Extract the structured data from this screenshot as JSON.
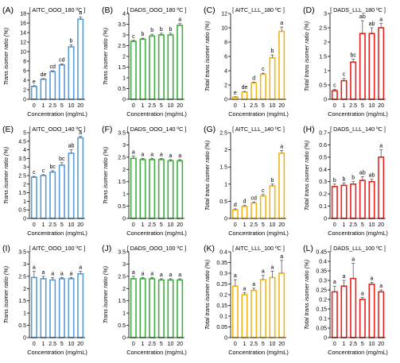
{
  "figure": {
    "xlabel": "Concentration (mg/mL)",
    "categories": [
      "0",
      "1",
      "2.5",
      "5",
      "10",
      "20"
    ],
    "colors": {
      "blue": "#5b9bd5",
      "green": "#3fae3f",
      "gold": "#f1b51c",
      "red": "#e8211b",
      "axis": "#000000",
      "error": "#444444"
    }
  },
  "chart_data": [
    {
      "type": "bar",
      "panel_label": "(A)",
      "title": "[ AITC_OOO_180 ºC ]",
      "ylabel": "Trans isomer ratio (%)",
      "categories": [
        "0",
        "1",
        "2.5",
        "5",
        "10",
        "20"
      ],
      "ylim": [
        0,
        18
      ],
      "yticks": [
        0,
        2,
        4,
        6,
        8,
        10,
        12,
        14,
        16,
        18
      ],
      "ytick_labels": [
        "0",
        "2",
        "4",
        "6",
        "8",
        "10",
        "12",
        "14",
        "16",
        "18"
      ],
      "values": [
        2.7,
        4.2,
        5.8,
        7.2,
        11.0,
        16.8
      ],
      "errors": [
        0.15,
        0.15,
        0.2,
        0.2,
        0.4,
        0.5
      ],
      "letters": [
        "e",
        "de",
        "cd",
        "cd",
        "b",
        "a"
      ],
      "color": "blue"
    },
    {
      "type": "bar",
      "panel_label": "(B)",
      "title": "[ DADS_OOO_180 ºC ]",
      "ylabel": "Trans isomer ratio (%)",
      "categories": [
        "0",
        "1",
        "2.5",
        "5",
        "10",
        "20"
      ],
      "ylim": [
        0,
        4
      ],
      "yticks": [
        0,
        0.5,
        1,
        1.5,
        2,
        2.5,
        3,
        3.5,
        4
      ],
      "ytick_labels": [
        "0",
        "0.5",
        "1",
        "1.5",
        "2",
        "2.5",
        "3",
        "3.5",
        "4"
      ],
      "values": [
        2.7,
        2.8,
        2.95,
        3.0,
        3.0,
        3.45
      ],
      "errors": [
        0.05,
        0.05,
        0.08,
        0.08,
        0.08,
        0.08
      ],
      "letters": [
        "c",
        "b",
        "b",
        "b",
        "b",
        "a"
      ],
      "color": "green"
    },
    {
      "type": "bar",
      "panel_label": "(C)",
      "title": "[ AITC_LLL_180 ºC ]",
      "ylabel": "Total trans isomer ratio (%)",
      "categories": [
        "0",
        "1",
        "2.5",
        "5",
        "10",
        "20"
      ],
      "ylim": [
        0,
        12
      ],
      "yticks": [
        0,
        2,
        4,
        6,
        8,
        10,
        12
      ],
      "ytick_labels": [
        "0",
        "2",
        "4",
        "6",
        "8",
        "10",
        "12"
      ],
      "values": [
        0.3,
        1.0,
        2.3,
        3.5,
        5.8,
        9.5
      ],
      "errors": [
        0.05,
        0.1,
        0.1,
        0.15,
        0.4,
        0.6
      ],
      "letters": [
        "e",
        "de",
        "d",
        "c",
        "b",
        "a"
      ],
      "color": "gold"
    },
    {
      "type": "bar",
      "panel_label": "(D)",
      "title": "[ DADS_LLL_180 ºC ]",
      "ylabel": "Total trans isomer ratio (%)",
      "categories": [
        "0",
        "1",
        "2.5",
        "5",
        "10",
        "20"
      ],
      "ylim": [
        0,
        3
      ],
      "yticks": [
        0,
        0.5,
        1,
        1.5,
        2,
        2.5,
        3
      ],
      "ytick_labels": [
        "0",
        "0.5",
        "1",
        "1.5",
        "2",
        "2.5",
        "3"
      ],
      "values": [
        0.3,
        0.65,
        1.3,
        2.3,
        2.3,
        2.5
      ],
      "errors": [
        0.05,
        0.08,
        0.1,
        0.45,
        0.2,
        0.15
      ],
      "letters": [
        "c",
        "c",
        "bc",
        "ab",
        "ab",
        "a"
      ],
      "color": "red"
    },
    {
      "type": "bar",
      "panel_label": "(E)",
      "title": "[ AITC_OOO_140 ºC ]",
      "ylabel": "Trans isomer ratio (%)",
      "categories": [
        "0",
        "1",
        "2.5",
        "5",
        "10",
        "20"
      ],
      "ylim": [
        0,
        5
      ],
      "yticks": [
        0,
        0.5,
        1,
        1.5,
        2,
        2.5,
        3,
        3.5,
        4,
        4.5,
        5
      ],
      "ytick_labels": [
        "0",
        "0.5",
        "1",
        "1.5",
        "2",
        "2.5",
        "3",
        "3.5",
        "4",
        "4.5",
        "5"
      ],
      "values": [
        2.4,
        2.5,
        2.7,
        3.1,
        3.8,
        4.7
      ],
      "errors": [
        0.05,
        0.05,
        0.08,
        0.15,
        0.2,
        0.08
      ],
      "letters": [
        "c",
        "c",
        "bc",
        "bc",
        "ab",
        "a"
      ],
      "color": "blue"
    },
    {
      "type": "bar",
      "panel_label": "(F)",
      "title": "[ DADS_OOO_140 ºC ]",
      "ylabel": "Trans isomer ratio (%)",
      "categories": [
        "0",
        "1",
        "2.5",
        "5",
        "10",
        "20"
      ],
      "ylim": [
        0,
        3.5
      ],
      "yticks": [
        0,
        0.5,
        1,
        1.5,
        2,
        2.5,
        3,
        3.5
      ],
      "ytick_labels": [
        "0",
        "0.5",
        "1",
        "1.5",
        "2",
        "2.5",
        "3",
        "3.5"
      ],
      "values": [
        2.45,
        2.4,
        2.4,
        2.4,
        2.35,
        2.35
      ],
      "errors": [
        0.1,
        0.05,
        0.05,
        0.05,
        0.05,
        0.05
      ],
      "letters": [
        "a",
        "a",
        "a",
        "a",
        "a",
        "a"
      ],
      "color": "green"
    },
    {
      "type": "bar",
      "panel_label": "(G)",
      "title": "[ AITC_LLL_140 ºC ]",
      "ylabel": "Total trans isomer ratio (%)",
      "categories": [
        "0",
        "1",
        "2.5",
        "5",
        "10",
        "20"
      ],
      "ylim": [
        0,
        2.5
      ],
      "yticks": [
        0,
        0.5,
        1,
        1.5,
        2,
        2.5
      ],
      "ytick_labels": [
        "0",
        "0.5",
        "1",
        "1.5",
        "2",
        "2.5"
      ],
      "values": [
        0.25,
        0.35,
        0.45,
        0.65,
        0.95,
        1.9
      ],
      "errors": [
        0.03,
        0.03,
        0.03,
        0.05,
        0.05,
        0.08
      ],
      "letters": [
        "d",
        "d",
        "cd",
        "c",
        "b",
        "a"
      ],
      "color": "gold"
    },
    {
      "type": "bar",
      "panel_label": "(H)",
      "title": "[ DADS_LLL_140 ºC ]",
      "ylabel": "Total trans isomer ratio (%)",
      "categories": [
        "0",
        "1",
        "2.5",
        "5",
        "10",
        "20"
      ],
      "ylim": [
        0,
        0.7
      ],
      "yticks": [
        0,
        0.1,
        0.2,
        0.3,
        0.4,
        0.5,
        0.6,
        0.7
      ],
      "ytick_labels": [
        "0",
        "0.1",
        "0.2",
        "0.3",
        "0.4",
        "0.5",
        "0.6",
        "0.7"
      ],
      "values": [
        0.26,
        0.27,
        0.28,
        0.31,
        0.3,
        0.5
      ],
      "errors": [
        0.02,
        0.02,
        0.02,
        0.03,
        0.02,
        0.06
      ],
      "letters": [
        "b",
        "b",
        "b",
        "ab",
        "ab",
        "a"
      ],
      "color": "red"
    },
    {
      "type": "bar",
      "panel_label": "(I)",
      "title": "[ AITC_OOO_100 ºC ]",
      "ylabel": "Trans isomer ratio (%)",
      "categories": [
        "0",
        "1",
        "2.5",
        "5",
        "10",
        "20"
      ],
      "ylim": [
        0,
        3.5
      ],
      "yticks": [
        0,
        0.5,
        1,
        1.5,
        2,
        2.5,
        3,
        3.5
      ],
      "ytick_labels": [
        "0",
        "0.5",
        "1",
        "1.5",
        "2",
        "2.5",
        "3",
        "3.5"
      ],
      "values": [
        2.45,
        2.4,
        2.35,
        2.4,
        2.4,
        2.6
      ],
      "errors": [
        0.25,
        0.1,
        0.1,
        0.05,
        0.05,
        0.1
      ],
      "letters": [
        "a",
        "a",
        "a",
        "a",
        "a",
        "a"
      ],
      "color": "blue"
    },
    {
      "type": "bar",
      "panel_label": "(J)",
      "title": "[ DADS_OOO_100 ºC ]",
      "ylabel": "Trans isomer ratio (%)",
      "categories": [
        "0",
        "1",
        "2.5",
        "5",
        "10",
        "20"
      ],
      "ylim": [
        0,
        3.5
      ],
      "yticks": [
        0,
        0.5,
        1,
        1.5,
        2,
        2.5,
        3,
        3.5
      ],
      "ytick_labels": [
        "0",
        "0.5",
        "1",
        "1.5",
        "2",
        "2.5",
        "3",
        "3.5"
      ],
      "values": [
        2.4,
        2.4,
        2.4,
        2.35,
        2.35,
        2.35
      ],
      "errors": [
        0.1,
        0.05,
        0.05,
        0.05,
        0.05,
        0.05
      ],
      "letters": [
        "a",
        "a",
        "a",
        "a",
        "a",
        "a"
      ],
      "color": "green"
    },
    {
      "type": "bar",
      "panel_label": "(K)",
      "title": "[ AITC_LLL_100 ºC ]",
      "ylabel": "Total trans isomer ratio (%)",
      "categories": [
        "0",
        "1",
        "2.5",
        "5",
        "10",
        "20"
      ],
      "ylim": [
        0,
        0.4
      ],
      "yticks": [
        0,
        0.05,
        0.1,
        0.15,
        0.2,
        0.25,
        0.3,
        0.35,
        0.4
      ],
      "ytick_labels": [
        "0",
        "0.05",
        "0.1",
        "0.15",
        "0.2",
        "0.25",
        "0.3",
        "0.35",
        "0.4"
      ],
      "values": [
        0.24,
        0.2,
        0.22,
        0.27,
        0.28,
        0.3
      ],
      "errors": [
        0.03,
        0.01,
        0.01,
        0.02,
        0.03,
        0.06
      ],
      "letters": [
        "a",
        "a",
        "a",
        "a",
        "a",
        "a"
      ],
      "color": "gold"
    },
    {
      "type": "bar",
      "panel_label": "(L)",
      "title": "[ DADS_LLL_100 ºC ]",
      "ylabel": "Total trans isomer ratio (%)",
      "categories": [
        "0",
        "1",
        "2.5",
        "5",
        "10",
        "20"
      ],
      "ylim": [
        0,
        0.45
      ],
      "yticks": [
        0,
        0.05,
        0.1,
        0.15,
        0.2,
        0.25,
        0.3,
        0.35,
        0.4,
        0.45
      ],
      "ytick_labels": [
        "0",
        "0.05",
        "0.1",
        "0.15",
        "0.2",
        "0.25",
        "0.3",
        "0.35",
        "0.4",
        "0.45"
      ],
      "values": [
        0.24,
        0.27,
        0.31,
        0.2,
        0.28,
        0.24
      ],
      "errors": [
        0.03,
        0.03,
        0.08,
        0.01,
        0.01,
        0.01
      ],
      "letters": [
        "a",
        "a",
        "a",
        "a",
        "a",
        "a"
      ],
      "color": "red"
    }
  ]
}
